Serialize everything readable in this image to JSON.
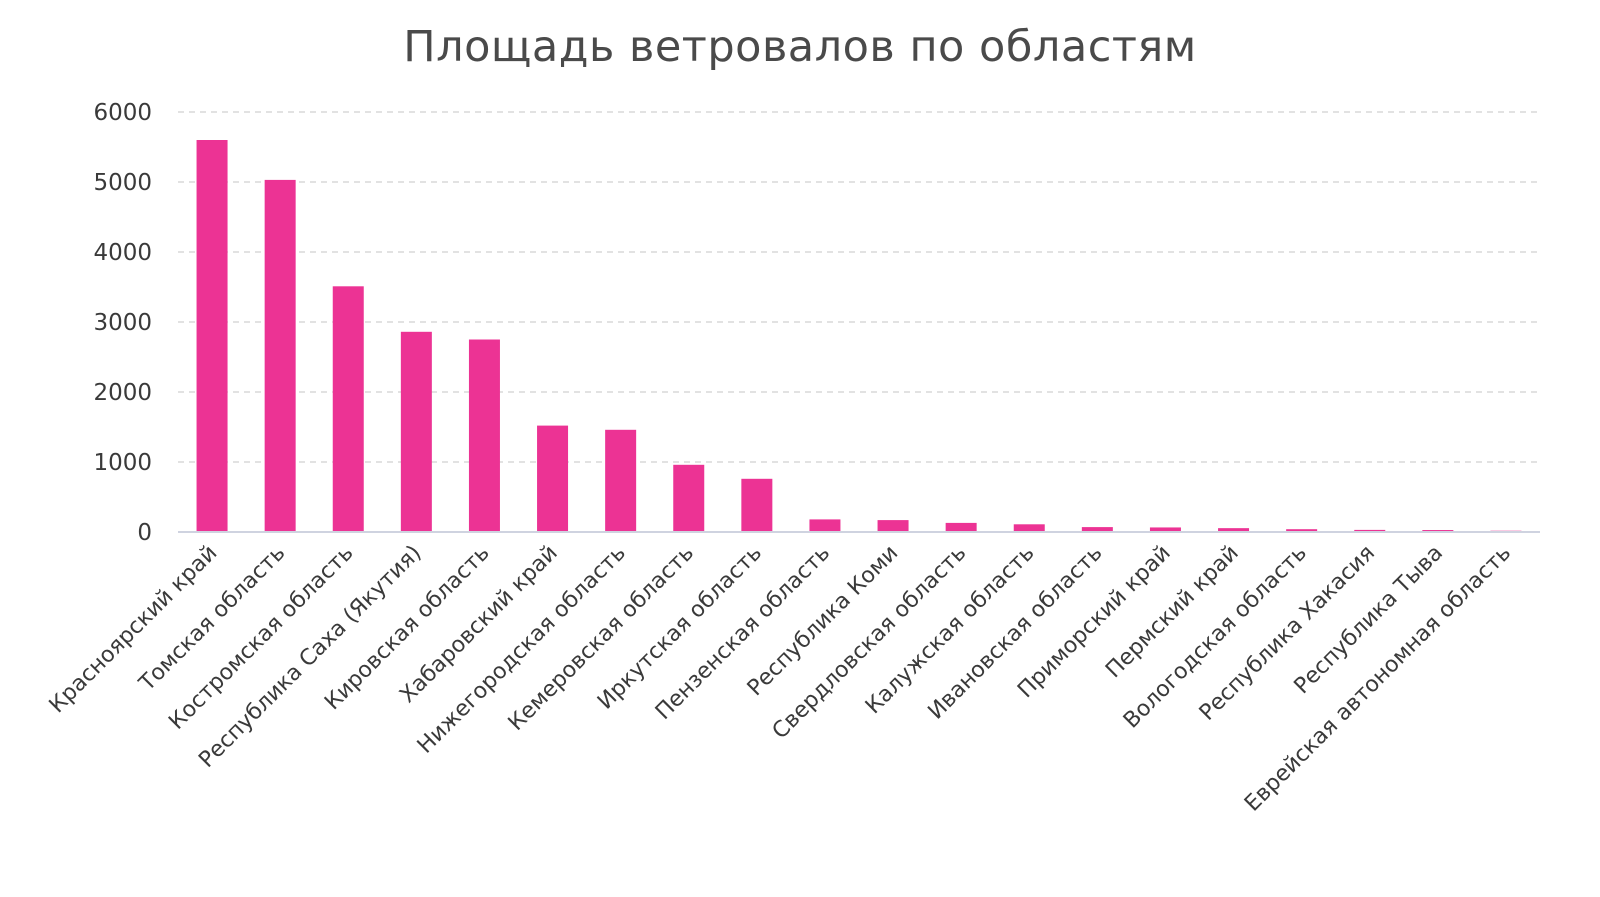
{
  "chart_data": {
    "type": "bar",
    "title": "Площадь ветровалов по областям",
    "xlabel": "",
    "ylabel": "",
    "categories": [
      "Красноярский край",
      "Томская область",
      "Костромская область",
      "Республика Саха (Якутия)",
      "Кировская область",
      "Хабаровский край",
      "Нижегородская область",
      "Кемеровская область",
      "Иркутская область",
      "Пензенская область",
      "Республика Коми",
      "Свердловская область",
      "Калужская область",
      "Ивановская область",
      "Приморский край",
      "Пермский край",
      "Вологодская область",
      "Республика Хакасия",
      "Республика Тыва",
      "Еврейская автономная область"
    ],
    "values": [
      5600,
      5030,
      3510,
      2860,
      2750,
      1520,
      1460,
      960,
      760,
      180,
      170,
      130,
      110,
      70,
      65,
      55,
      40,
      30,
      28,
      18
    ],
    "ylim": [
      0,
      6000
    ],
    "yticks": [
      "0",
      "1000",
      "2000",
      "3000",
      "4000",
      "5000",
      "6000"
    ],
    "grid": true,
    "legend": "none",
    "bar_color": "#ec3394",
    "grid_color": "#d9d9d9",
    "axis_color": "#cfd3e0"
  }
}
